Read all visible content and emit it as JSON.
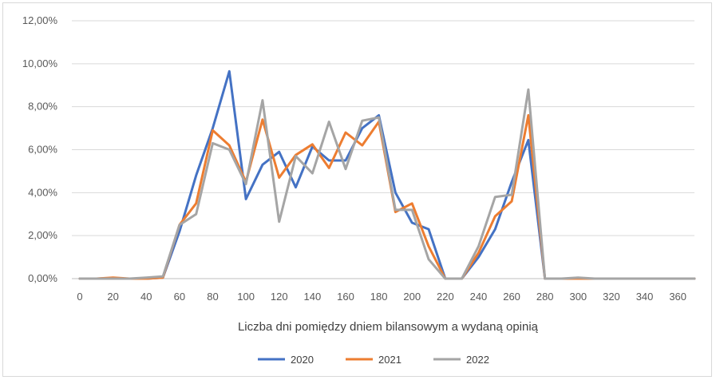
{
  "chart_data": {
    "type": "line",
    "title": "",
    "xlabel": "Liczba dni pomiędzy dniem bilansowym a wydaną opinią",
    "ylabel": "",
    "x": [
      0,
      10,
      20,
      30,
      40,
      50,
      60,
      70,
      80,
      90,
      100,
      110,
      120,
      130,
      140,
      150,
      160,
      170,
      180,
      190,
      200,
      210,
      220,
      230,
      240,
      250,
      260,
      270,
      280,
      290,
      300,
      310,
      320,
      330,
      340,
      350,
      360,
      370
    ],
    "xlim": [
      0,
      370
    ],
    "ylim": [
      0,
      12
    ],
    "x_ticks": [
      "0",
      "20",
      "40",
      "60",
      "80",
      "100",
      "120",
      "140",
      "160",
      "180",
      "200",
      "220",
      "240",
      "260",
      "280",
      "300",
      "320",
      "340",
      "360"
    ],
    "y_ticks": [
      "0,00%",
      "2,00%",
      "4,00%",
      "6,00%",
      "8,00%",
      "10,00%",
      "12,00%"
    ],
    "grid": "horizontal",
    "legend_position": "bottom",
    "series": [
      {
        "name": "2020",
        "color": "#4472C4",
        "values": [
          0,
          0,
          0,
          0,
          0,
          0.05,
          2.2,
          4.8,
          7.0,
          9.65,
          3.7,
          5.3,
          5.9,
          4.25,
          6.15,
          5.5,
          5.5,
          7.0,
          7.6,
          4.0,
          2.6,
          2.3,
          0,
          0,
          1.0,
          2.3,
          4.5,
          6.45,
          0,
          0,
          0,
          0,
          0,
          0,
          0,
          0,
          0,
          0
        ]
      },
      {
        "name": "2021",
        "color": "#ED7D31",
        "values": [
          0,
          0,
          0.05,
          0,
          0,
          0.05,
          2.5,
          3.5,
          6.9,
          6.2,
          4.5,
          7.4,
          4.7,
          5.75,
          6.25,
          5.15,
          6.8,
          6.2,
          7.3,
          3.1,
          3.5,
          1.5,
          0,
          0,
          1.2,
          2.9,
          3.6,
          7.6,
          0,
          0,
          0,
          0,
          0,
          0,
          0,
          0,
          0,
          0
        ]
      },
      {
        "name": "2022",
        "color": "#A5A5A5",
        "values": [
          0,
          0,
          0,
          0,
          0.05,
          0.1,
          2.5,
          3.0,
          6.3,
          6.0,
          4.4,
          8.3,
          2.65,
          5.7,
          4.9,
          7.3,
          5.1,
          7.35,
          7.5,
          3.2,
          3.2,
          0.9,
          0,
          0,
          1.5,
          3.8,
          3.9,
          8.8,
          0,
          0,
          0.05,
          0,
          0,
          0,
          0,
          0,
          0,
          0
        ]
      }
    ]
  }
}
